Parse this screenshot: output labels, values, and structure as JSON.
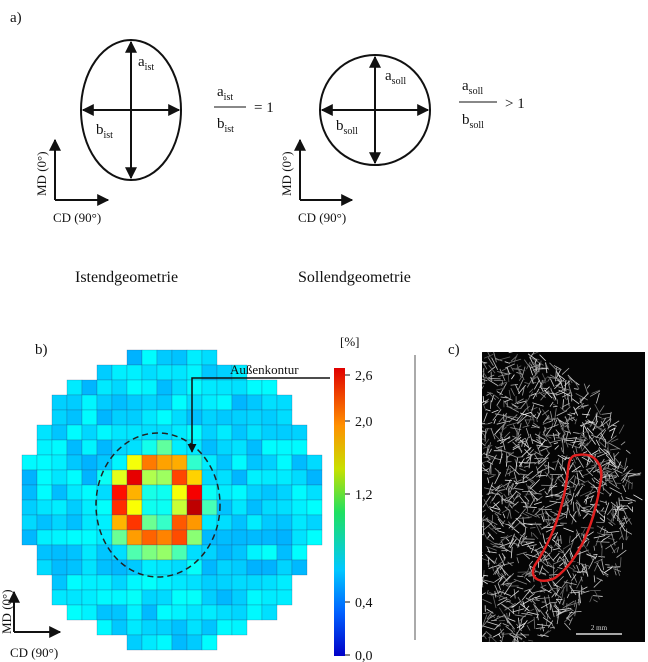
{
  "panel_a": {
    "label": "a)",
    "ist": {
      "a": "a",
      "a_sub": "ist",
      "b": "b",
      "b_sub": "ist",
      "relation": "= 1",
      "caption": "Istendgeometrie",
      "md": "MD (0°)",
      "cd": "CD (90°)"
    },
    "soll": {
      "a": "a",
      "a_sub": "soll",
      "b": "b",
      "b_sub": "soll",
      "relation": "> 1",
      "caption": "Sollendgeometrie",
      "md": "MD (0°)",
      "cd": "CD (90°)"
    }
  },
  "panel_b": {
    "label": "b)",
    "annotation": "Außenkontur",
    "unit": "[%]",
    "md": "MD (0°)",
    "cd": "CD (90°)",
    "colorbar_ticks": [
      "2,6",
      "2,0",
      "1,2",
      "0,4",
      "0,0"
    ]
  },
  "panel_c": {
    "label": "c)",
    "scale": "2 mm"
  }
}
